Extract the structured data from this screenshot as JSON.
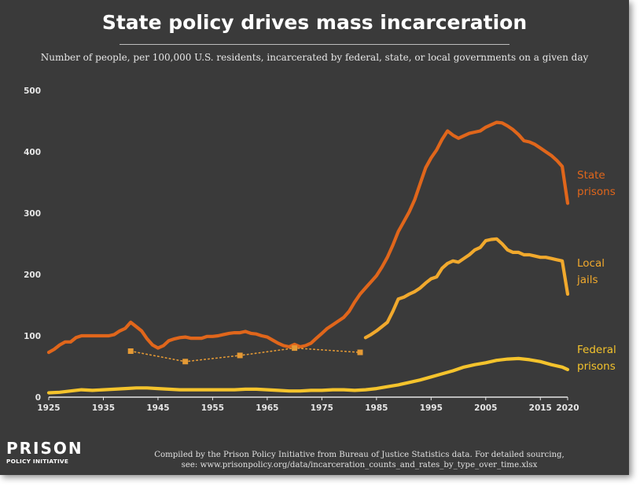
{
  "header": {
    "title": "State policy drives mass incarceration",
    "subtitle": "Number of people, per 100,000 U.S. residents, incarcerated by federal, state, or local governments on a given day"
  },
  "footer": {
    "logo_main": "PRISON",
    "logo_sub": "POLICY INITIATIVE",
    "source_line1": "Compiled by the Prison Policy Initiative from Bureau of Justice Statistics data. For detailed sourcing,",
    "source_line2": "see: www.prisonpolicy.org/data/incarceration_counts_and_rates_by_type_over_time.xlsx"
  },
  "colors": {
    "background": "#3a3a3a",
    "state": "#e0661b",
    "local": "#f1a92d",
    "local_early": "#e59a35",
    "federal": "#f4c32c",
    "axis": "#e6e6e6"
  },
  "chart_data": {
    "type": "line",
    "title": "State policy drives mass incarceration",
    "subtitle": "Number of people, per 100,000 U.S. residents, incarcerated by federal, state, or local governments on a given day",
    "xlabel": "",
    "ylabel": "",
    "xlim": [
      1925,
      2020
    ],
    "ylim": [
      0,
      500
    ],
    "xticks": [
      1925,
      1935,
      1945,
      1955,
      1965,
      1975,
      1985,
      1995,
      2005,
      2015,
      2020
    ],
    "yticks": [
      0,
      100,
      200,
      300,
      400,
      500
    ],
    "grid": false,
    "legend": "inline labels at right end of each line",
    "series": [
      {
        "name": "State prisons",
        "label_lines": [
          "State",
          "prisons"
        ],
        "color": "#e0661b",
        "style": "solid",
        "x": [
          1925,
          1926,
          1927,
          1928,
          1929,
          1930,
          1931,
          1932,
          1933,
          1934,
          1935,
          1936,
          1937,
          1938,
          1939,
          1940,
          1941,
          1942,
          1943,
          1944,
          1945,
          1946,
          1947,
          1948,
          1949,
          1950,
          1951,
          1952,
          1953,
          1954,
          1955,
          1956,
          1957,
          1958,
          1959,
          1960,
          1961,
          1962,
          1963,
          1964,
          1965,
          1966,
          1967,
          1968,
          1969,
          1970,
          1971,
          1972,
          1973,
          1974,
          1975,
          1976,
          1977,
          1978,
          1979,
          1980,
          1981,
          1982,
          1983,
          1984,
          1985,
          1986,
          1987,
          1988,
          1989,
          1990,
          1991,
          1992,
          1993,
          1994,
          1995,
          1996,
          1997,
          1998,
          1999,
          2000,
          2001,
          2002,
          2003,
          2004,
          2005,
          2006,
          2007,
          2008,
          2009,
          2010,
          2011,
          2012,
          2013,
          2014,
          2015,
          2016,
          2017,
          2018,
          2019,
          2020
        ],
        "y": [
          73,
          78,
          85,
          90,
          90,
          97,
          100,
          100,
          100,
          100,
          100,
          100,
          102,
          108,
          112,
          122,
          115,
          108,
          95,
          85,
          80,
          84,
          92,
          95,
          97,
          98,
          96,
          96,
          96,
          99,
          99,
          100,
          102,
          104,
          105,
          105,
          107,
          104,
          103,
          100,
          98,
          93,
          88,
          84,
          82,
          86,
          82,
          84,
          88,
          96,
          104,
          112,
          118,
          124,
          130,
          140,
          155,
          168,
          178,
          188,
          198,
          212,
          228,
          248,
          270,
          286,
          302,
          322,
          348,
          374,
          390,
          403,
          420,
          434,
          427,
          422,
          426,
          430,
          432,
          434,
          440,
          444,
          448,
          447,
          442,
          436,
          428,
          418,
          416,
          412,
          406,
          400,
          394,
          386,
          376,
          316
        ]
      },
      {
        "name": "Local jails",
        "label_lines": [
          "Local",
          "jails"
        ],
        "color": "#f1a92d",
        "style": "solid",
        "x": [
          1983,
          1984,
          1985,
          1986,
          1987,
          1988,
          1989,
          1990,
          1991,
          1992,
          1993,
          1994,
          1995,
          1996,
          1997,
          1998,
          1999,
          2000,
          2001,
          2002,
          2003,
          2004,
          2005,
          2006,
          2007,
          2008,
          2009,
          2010,
          2011,
          2012,
          2013,
          2014,
          2015,
          2016,
          2017,
          2018,
          2019,
          2020
        ],
        "y": [
          97,
          102,
          108,
          115,
          122,
          140,
          160,
          163,
          168,
          172,
          178,
          186,
          193,
          196,
          210,
          218,
          222,
          220,
          226,
          232,
          240,
          244,
          255,
          257,
          258,
          250,
          240,
          236,
          236,
          232,
          232,
          230,
          228,
          228,
          226,
          224,
          222,
          168
        ]
      },
      {
        "name": "Local jails (earlier estimates)",
        "color": "#e59a35",
        "style": "dotted",
        "x": [
          1940,
          1950,
          1960,
          1970,
          1982
        ],
        "y": [
          75,
          58,
          68,
          80,
          73
        ]
      },
      {
        "name": "Federal prisons",
        "label_lines": [
          "Federal",
          "prisons"
        ],
        "color": "#f4c32c",
        "style": "solid",
        "x": [
          1925,
          1927,
          1929,
          1931,
          1933,
          1935,
          1937,
          1939,
          1941,
          1943,
          1945,
          1947,
          1949,
          1951,
          1953,
          1955,
          1957,
          1959,
          1961,
          1963,
          1965,
          1967,
          1969,
          1971,
          1973,
          1975,
          1977,
          1979,
          1981,
          1983,
          1985,
          1987,
          1989,
          1991,
          1993,
          1995,
          1997,
          1999,
          2001,
          2003,
          2005,
          2007,
          2009,
          2011,
          2013,
          2015,
          2017,
          2019,
          2020
        ],
        "y": [
          7,
          8,
          10,
          12,
          11,
          12,
          13,
          14,
          15,
          15,
          14,
          13,
          12,
          12,
          12,
          12,
          12,
          12,
          13,
          13,
          12,
          11,
          10,
          10,
          11,
          11,
          12,
          12,
          11,
          12,
          14,
          17,
          20,
          24,
          28,
          33,
          38,
          43,
          49,
          53,
          56,
          60,
          62,
          63,
          61,
          58,
          53,
          49,
          45
        ]
      }
    ]
  }
}
